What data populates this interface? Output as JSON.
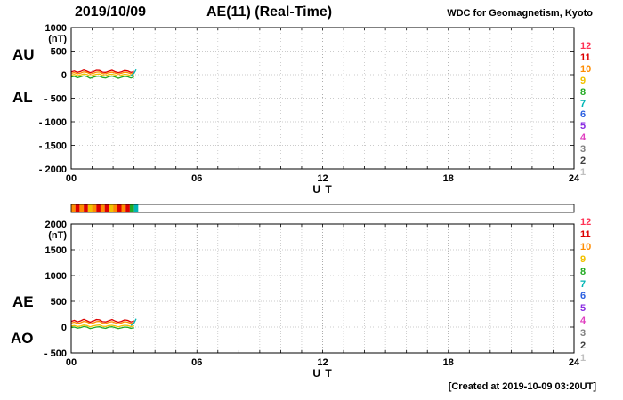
{
  "header": {
    "date": "2019/10/09",
    "title": "AE(11) (Real-Time)",
    "org": "WDC for Geomagnetism, Kyoto"
  },
  "footer": {
    "created": "[Created at 2019-10-09 03:20UT]"
  },
  "legend": {
    "items": [
      {
        "label": "12",
        "color": "#ff3355"
      },
      {
        "label": "11",
        "color": "#dd0000"
      },
      {
        "label": "10",
        "color": "#ff8c00"
      },
      {
        "label": "9",
        "color": "#f2c200"
      },
      {
        "label": "8",
        "color": "#22aa22"
      },
      {
        "label": "7",
        "color": "#00b5b5"
      },
      {
        "label": "6",
        "color": "#2b5fe0"
      },
      {
        "label": "5",
        "color": "#8a2be2"
      },
      {
        "label": "4",
        "color": "#e040c0"
      },
      {
        "label": "3",
        "color": "#808080"
      },
      {
        "label": "2",
        "color": "#404040"
      },
      {
        "label": "1",
        "color": "#c0c0c0"
      }
    ]
  },
  "chart_data": [
    {
      "type": "line",
      "name": "au-al-panel",
      "row_labels": [
        "AU",
        "AL"
      ],
      "ylabel": "(nT)",
      "ylim": [
        -2000,
        1000
      ],
      "ytick_vals": [
        1000,
        500,
        0,
        -500,
        -1000,
        -1500,
        -2000
      ],
      "ytick_labels": [
        "1000",
        "500",
        "0",
        "- 500",
        "- 1000",
        "- 1500",
        "- 2000"
      ],
      "xlim": [
        0,
        24
      ],
      "xtick_vals": [
        0,
        6,
        12,
        18,
        24
      ],
      "xtick_labels": [
        "00",
        "06",
        "12",
        "18",
        "24"
      ],
      "xlabel": "U T",
      "x": [
        0,
        0.15,
        0.3,
        0.45,
        0.6,
        0.75,
        0.9,
        1.05,
        1.2,
        1.35,
        1.5,
        1.65,
        1.8,
        1.95,
        2.1,
        2.25,
        2.4,
        2.55,
        2.7,
        2.85,
        3.0
      ],
      "series": [
        {
          "name": "station-trace-red",
          "color": "#dd0000",
          "y": [
            60,
            80,
            50,
            70,
            100,
            75,
            45,
            65,
            95,
            90,
            55,
            50,
            75,
            95,
            65,
            45,
            60,
            90,
            80,
            50,
            65
          ]
        },
        {
          "name": "station-trace-orange",
          "color": "#ff8c00",
          "y": [
            30,
            45,
            20,
            35,
            60,
            50,
            15,
            30,
            55,
            60,
            25,
            20,
            45,
            55,
            35,
            15,
            30,
            55,
            45,
            20,
            35
          ]
        },
        {
          "name": "station-trace-yellow",
          "color": "#f2c200",
          "y": [
            -10,
            5,
            -20,
            -5,
            15,
            5,
            -30,
            -10,
            10,
            15,
            -15,
            -20,
            5,
            10,
            -5,
            -30,
            -10,
            10,
            0,
            -20,
            -5
          ]
        },
        {
          "name": "station-trace-green",
          "color": "#22aa22",
          "y": [
            -50,
            -35,
            -65,
            -45,
            -25,
            -40,
            -75,
            -55,
            -35,
            -30,
            -60,
            -70,
            -40,
            -30,
            -50,
            -75,
            -55,
            -35,
            -45,
            -70,
            -48
          ]
        },
        {
          "name": "station-trace-end",
          "color": "#00b5b5",
          "x": [
            2.85,
            3.0,
            3.1
          ],
          "y": [
            -20,
            30,
            110
          ]
        }
      ]
    },
    {
      "type": "line",
      "name": "ae-ao-panel",
      "row_labels": [
        "AE",
        "AO"
      ],
      "ylabel": "(nT)",
      "ylim": [
        -500,
        2000
      ],
      "ytick_vals": [
        2000,
        1500,
        1000,
        500,
        0,
        -500
      ],
      "ytick_labels": [
        "2000",
        "1500",
        "1000",
        "500",
        "0",
        "- 500"
      ],
      "xlim": [
        0,
        24
      ],
      "xtick_vals": [
        0,
        6,
        12,
        18,
        24
      ],
      "xtick_labels": [
        "00",
        "06",
        "12",
        "18",
        "24"
      ],
      "xlabel": "U T",
      "x": [
        0,
        0.15,
        0.3,
        0.45,
        0.6,
        0.75,
        0.9,
        1.05,
        1.2,
        1.35,
        1.5,
        1.65,
        1.8,
        1.95,
        2.1,
        2.25,
        2.4,
        2.55,
        2.7,
        2.85,
        3.0
      ],
      "series": [
        {
          "name": "ae-trace-red",
          "color": "#dd0000",
          "y": [
            110,
            130,
            100,
            120,
            150,
            125,
            95,
            115,
            145,
            140,
            105,
            100,
            125,
            145,
            115,
            95,
            110,
            140,
            130,
            100,
            115
          ]
        },
        {
          "name": "ae-trace-orange",
          "color": "#ff8c00",
          "y": [
            80,
            95,
            70,
            85,
            110,
            100,
            65,
            80,
            105,
            110,
            75,
            70,
            95,
            105,
            85,
            65,
            80,
            105,
            95,
            70,
            85
          ]
        },
        {
          "name": "ao-trace-yellow",
          "color": "#f2c200",
          "y": [
            20,
            30,
            10,
            20,
            40,
            30,
            5,
            20,
            35,
            40,
            15,
            10,
            30,
            35,
            20,
            5,
            20,
            35,
            30,
            10,
            20
          ]
        },
        {
          "name": "ao-trace-green",
          "color": "#22aa22",
          "y": [
            -10,
            0,
            -20,
            -10,
            10,
            0,
            -30,
            -15,
            0,
            5,
            -15,
            -25,
            0,
            5,
            -10,
            -30,
            -15,
            0,
            -5,
            -25,
            -10
          ]
        },
        {
          "name": "ae-trace-end",
          "color": "#00b5b5",
          "x": [
            2.85,
            3.0,
            3.1
          ],
          "y": [
            30,
            80,
            160
          ]
        }
      ]
    },
    {
      "type": "availability-bar",
      "name": "station-colorbar",
      "xlim": [
        0,
        24
      ],
      "segments": {
        "x_start": 0,
        "seg_hours": 0.2,
        "colors": [
          "#ff8c00",
          "#dd0000",
          "#ff8c00",
          "#dd0000",
          "#f2c200",
          "#ff8c00",
          "#dd0000",
          "#ff8c00",
          "#dd0000",
          "#f2c200",
          "#ff8c00",
          "#dd0000",
          "#ff8c00",
          "#dd0000",
          "#22aa22",
          "#00b5b5"
        ]
      }
    }
  ]
}
